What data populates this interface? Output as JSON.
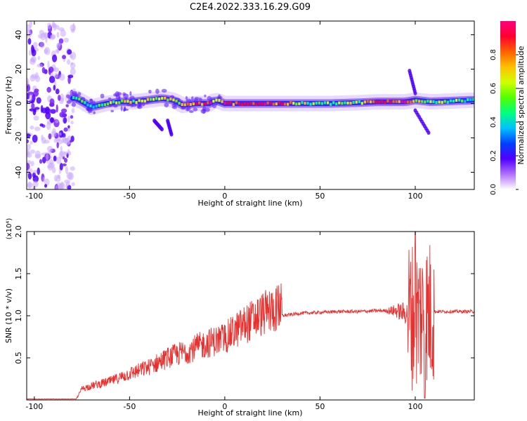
{
  "figure": {
    "title": "C2E4.2022.333.16.29.G09"
  },
  "chart_data": [
    {
      "type": "heatmap",
      "title": "C2E4.2022.333.16.29.G09",
      "xlabel": "Height of straight line (km)",
      "ylabel": "Frequency (Hz)",
      "xlim": [
        -104,
        131
      ],
      "ylim": [
        -50,
        48
      ],
      "xticks": [
        -100,
        -50,
        0,
        50,
        100
      ],
      "yticks": [
        -40,
        -20,
        0,
        20,
        40
      ],
      "colorbar": {
        "label": "Normalized spectral amplitude",
        "range": [
          0,
          1
        ],
        "ticks": [
          "0.0",
          "0.2",
          "0.4",
          "0.6",
          "0.8"
        ],
        "colors": [
          "#ffffff",
          "#b070ff",
          "#5000ff",
          "#0040ff",
          "#00c0ff",
          "#00ff80",
          "#50ff00",
          "#d0ff00",
          "#ffc000",
          "#ff6000",
          "#ff0030",
          "#ff0080"
        ]
      },
      "ridge": [
        {
          "x": -78,
          "y": 3,
          "amp": 0.5
        },
        {
          "x": -70,
          "y": -2,
          "amp": 0.5
        },
        {
          "x": -62,
          "y": 0,
          "amp": 0.55
        },
        {
          "x": -55,
          "y": 1,
          "amp": 0.55
        },
        {
          "x": -48,
          "y": 1,
          "amp": 0.6
        },
        {
          "x": -40,
          "y": 2,
          "amp": 0.62
        },
        {
          "x": -33,
          "y": 3,
          "amp": 0.65
        },
        {
          "x": -27,
          "y": 2,
          "amp": 0.6
        },
        {
          "x": -22,
          "y": -1,
          "amp": 0.65
        },
        {
          "x": -15,
          "y": 0,
          "amp": 0.8
        },
        {
          "x": -8,
          "y": 0,
          "amp": 0.85
        },
        {
          "x": -5,
          "y": 2,
          "amp": 0.7
        },
        {
          "x": 0,
          "y": 0,
          "amp": 0.88
        },
        {
          "x": 10,
          "y": 0,
          "amp": 0.9
        },
        {
          "x": 25,
          "y": 0,
          "amp": 0.88
        },
        {
          "x": 40,
          "y": 0,
          "amp": 0.6
        },
        {
          "x": 55,
          "y": 0,
          "amp": 0.55
        },
        {
          "x": 70,
          "y": 0.5,
          "amp": 0.6
        },
        {
          "x": 80,
          "y": 1,
          "amp": 0.85
        },
        {
          "x": 95,
          "y": 1,
          "amp": 0.9
        },
        {
          "x": 100,
          "y": 2,
          "amp": 0.6
        },
        {
          "x": 108,
          "y": 1,
          "amp": 0.55
        },
        {
          "x": 120,
          "y": 1.5,
          "amp": 0.5
        },
        {
          "x": 131,
          "y": 2,
          "amp": 0.5
        }
      ],
      "chirps": [
        {
          "x": [
            97,
            100
          ],
          "y": [
            19,
            6
          ]
        },
        {
          "x": [
            100,
            107
          ],
          "y": [
            -4,
            -17
          ]
        },
        {
          "x": [
            -30,
            -28
          ],
          "y": [
            -10,
            -18
          ]
        },
        {
          "x": [
            -37,
            -33
          ],
          "y": [
            -10,
            -15
          ]
        }
      ],
      "noise_region": {
        "x": [
          -104,
          -79
        ],
        "y": [
          -50,
          48
        ]
      }
    },
    {
      "type": "line",
      "xlabel": "Height of straight line (km)",
      "ylabel": "SNR (10 * v/v)",
      "y_multiplier": "(x10⁴)",
      "xlim": [
        -104,
        131
      ],
      "ylim": [
        0,
        2.0
      ],
      "xticks": [
        -100,
        -50,
        0,
        50,
        100
      ],
      "yticks": [
        "0.5",
        "1.0",
        "1.5",
        "2.0"
      ],
      "color": "#e8312f",
      "envelope": [
        {
          "x": -104,
          "y": 0.01
        },
        {
          "x": -78,
          "y": 0.01
        },
        {
          "x": -75,
          "y": 0.12
        },
        {
          "x": -70,
          "y": 0.15
        },
        {
          "x": -60,
          "y": 0.2
        },
        {
          "x": -50,
          "y": 0.28
        },
        {
          "x": -40,
          "y": 0.35
        },
        {
          "x": -30,
          "y": 0.45
        },
        {
          "x": -20,
          "y": 0.52
        },
        {
          "x": -10,
          "y": 0.6
        },
        {
          "x": 0,
          "y": 0.66
        },
        {
          "x": 10,
          "y": 0.8
        },
        {
          "x": 20,
          "y": 0.92
        },
        {
          "x": 30,
          "y": 1.0
        },
        {
          "x": 40,
          "y": 1.03
        },
        {
          "x": 50,
          "y": 1.04
        },
        {
          "x": 60,
          "y": 1.05
        },
        {
          "x": 70,
          "y": 1.05
        },
        {
          "x": 80,
          "y": 1.06
        },
        {
          "x": 90,
          "y": 1.06
        },
        {
          "x": 100,
          "y": 1.0
        },
        {
          "x": 110,
          "y": 1.05
        },
        {
          "x": 120,
          "y": 1.05
        },
        {
          "x": 131,
          "y": 1.05
        }
      ],
      "peak": {
        "x": 100,
        "y": 2.0
      },
      "min": {
        "x": 105,
        "y": 0.02
      }
    }
  ]
}
